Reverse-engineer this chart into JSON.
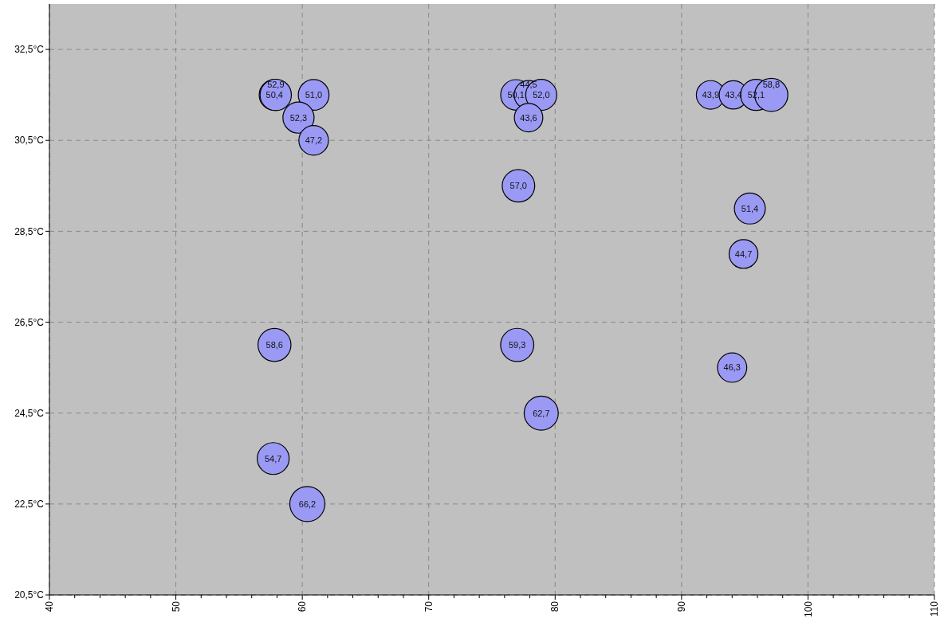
{
  "chart_data": {
    "type": "bubble",
    "x": [
      57.8,
      57.9,
      60.9,
      59.7,
      60.9,
      77.1,
      76.9,
      77.9,
      78.9,
      77.9,
      92.3,
      94.1,
      95.9,
      97.1,
      95.4,
      94.9,
      94.0,
      57.8,
      77.0,
      78.9,
      57.7,
      60.4
    ],
    "values": [
      31.5,
      31.5,
      31.5,
      31.0,
      30.5,
      29.5,
      31.5,
      31.5,
      31.5,
      31.0,
      31.5,
      31.5,
      31.5,
      31.5,
      29.0,
      28.0,
      25.5,
      26.0,
      26.0,
      24.5,
      23.5,
      22.5
    ],
    "sizes": [
      50.4,
      52.9,
      51.0,
      52.3,
      47.2,
      57.0,
      50.1,
      44.5,
      52.0,
      43.6,
      43.9,
      43.4,
      52.1,
      58.8,
      51.4,
      44.7,
      46.3,
      58.6,
      59.3,
      62.7,
      54.7,
      66.2
    ],
    "value_labels": [
      "50,4",
      "52,9",
      "51,0",
      "52,3",
      "47,2",
      "57,0",
      "50,1",
      "44,5",
      "52,0",
      "43,6",
      "43,9",
      "43,4",
      "52,1",
      "58,8",
      "51,4",
      "44,7",
      "46,3",
      "58,6",
      "59,3",
      "62,7",
      "54,7",
      "66,2"
    ],
    "color": "#9a9af5",
    "xlim": [
      40,
      110
    ],
    "xticks": [
      40,
      {
        "value": 42,
        "label": null
      },
      {
        "value": 44,
        "label": null
      },
      {
        "value": 46,
        "label": null
      },
      {
        "value": 48,
        "label": null
      },
      50,
      {
        "value": 52,
        "label": null
      },
      {
        "value": 54,
        "label": null
      },
      {
        "value": 56,
        "label": null
      },
      {
        "value": 58,
        "label": null
      },
      60,
      {
        "value": 62,
        "label": null
      },
      {
        "value": 64,
        "label": null
      },
      {
        "value": 66,
        "label": null
      },
      {
        "value": 68,
        "label": null
      },
      70,
      {
        "value": 72,
        "label": null
      },
      {
        "value": 74,
        "label": null
      },
      {
        "value": 76,
        "label": null
      },
      {
        "value": 78,
        "label": null
      },
      80,
      {
        "value": 82,
        "label": null
      },
      {
        "value": 84,
        "label": null
      },
      {
        "value": 86,
        "label": null
      },
      {
        "value": 88,
        "label": null
      },
      90,
      {
        "value": 92,
        "label": null
      },
      {
        "value": 94,
        "label": null
      },
      {
        "value": 96,
        "label": null
      },
      {
        "value": 98,
        "label": null
      },
      100,
      {
        "value": 102,
        "label": null
      },
      {
        "value": 104,
        "label": null
      },
      {
        "value": 106,
        "label": null
      },
      {
        "value": 108,
        "label": null
      },
      110
    ],
    "ylim": [
      20.5,
      33.5
    ],
    "yticks": [
      {
        "value": 20.5,
        "label": "20,5°C"
      },
      {
        "value": 22.5,
        "label": "22,5°C"
      },
      {
        "value": 24.5,
        "label": "24,5°C"
      },
      {
        "value": 26.5,
        "label": "26,5°C"
      },
      {
        "value": 28.5,
        "label": "28,5°C"
      },
      {
        "value": 30.5,
        "label": "30,5°C"
      },
      {
        "value": 32.5,
        "label": "32,5°C"
      }
    ],
    "grid": true
  }
}
